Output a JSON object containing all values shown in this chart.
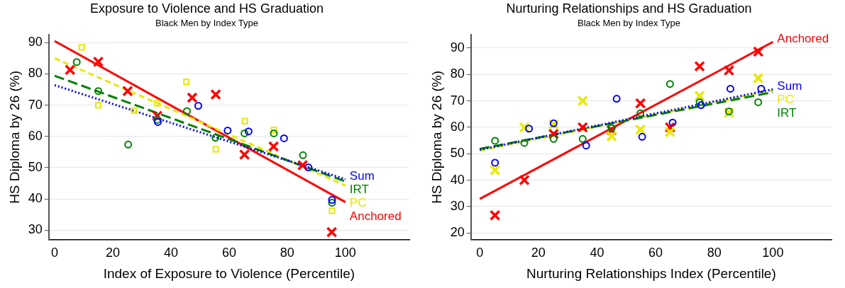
{
  "chart_data": [
    {
      "type": "scatter",
      "title": "Exposure to Violence and HS Graduation",
      "subtitle": "Black Men by Index Type",
      "xlabel": "Index of Exposure to Violence (Percentile)",
      "ylabel": "HS Diploma by 26 (%)",
      "xlim": [
        -2,
        122
      ],
      "ylim": [
        27,
        92.5
      ],
      "xticks": [
        0,
        20,
        40,
        60,
        80,
        100
      ],
      "yticks": [
        30,
        40,
        50,
        60,
        70,
        80,
        90
      ],
      "grid": "y",
      "legend": false,
      "series": [
        {
          "marker": "circle",
          "color": "#0000ff",
          "x": [
            35.5,
            49.4,
            59.5,
            66.7,
            78.9,
            87.3,
            95.4
          ],
          "values": [
            64.6,
            69.8,
            61.9,
            61.6,
            59.4,
            50.1,
            39.7
          ]
        },
        {
          "marker": "circle",
          "color": "#008000",
          "x": [
            7.6,
            15,
            25.3,
            35.3,
            45.5,
            55.3,
            65.3,
            75.4,
            85.4,
            95.4
          ],
          "values": [
            83.8,
            74.5,
            57.4,
            65.3,
            68.1,
            59.6,
            61.0,
            61.0,
            54.0,
            38.8
          ]
        },
        {
          "marker": "square",
          "color": "#e8e800",
          "x": [
            9.3,
            15,
            27.3,
            35.3,
            45.3,
            55.4,
            65.4,
            75.4,
            95.4
          ],
          "values": [
            88.5,
            70.0,
            68.3,
            70.6,
            77.5,
            55.9,
            64.9,
            62.1,
            36.2
          ]
        },
        {
          "marker": "cross",
          "color": "#ff0000",
          "x": [
            5.3,
            15,
            25.1,
            35.3,
            47.3,
            55.4,
            65.3,
            75.3,
            85.3,
            95.3
          ],
          "values": [
            81.3,
            83.9,
            74.5,
            66.6,
            72.4,
            73.4,
            54.2,
            56.8,
            50.8,
            29.4
          ]
        },
        {
          "type": "line",
          "name": "Sum",
          "line_style": "dotted",
          "color": "#0000ff",
          "x": [
            0,
            100
          ],
          "values": [
            76.4,
            46.3
          ]
        },
        {
          "type": "line",
          "name": "IRT",
          "line_style": "dashed",
          "color": "#008000",
          "x": [
            0,
            100
          ],
          "values": [
            79.4,
            45.6
          ]
        },
        {
          "type": "line",
          "name": "PC",
          "line_style": "dashed",
          "color": "#e8e800",
          "x": [
            0,
            100
          ],
          "values": [
            85.0,
            44.3
          ]
        },
        {
          "type": "line",
          "name": "Anchored",
          "line_style": "solid",
          "color": "#ff0000",
          "x": [
            0,
            100
          ],
          "values": [
            90.5,
            39.0
          ]
        }
      ]
    },
    {
      "type": "scatter",
      "title": "Nurturing Relationships and HS Graduation",
      "subtitle": "Black Men by Index Type",
      "xlabel": "Nurturing Relationships Index (Percentile)",
      "ylabel": "HS Diploma by 26 (%)",
      "xlim": [
        -3,
        120
      ],
      "ylim": [
        17.5,
        95
      ],
      "xticks": [
        0,
        20,
        40,
        60,
        80,
        100
      ],
      "yticks": [
        20,
        30,
        40,
        50,
        60,
        70,
        80,
        90
      ],
      "grid": "y",
      "legend": false,
      "series": [
        {
          "marker": "circle",
          "color": "#0000ff",
          "x": [
            5.2,
            16.8,
            25.2,
            36.3,
            46.7,
            55.4,
            65.8,
            75.5,
            85.5,
            96.0
          ],
          "values": [
            46.6,
            59.5,
            61.5,
            53.1,
            70.8,
            56.4,
            61.8,
            68.4,
            74.6,
            74.6
          ]
        },
        {
          "marker": "circle",
          "color": "#008000",
          "x": [
            5.2,
            15.2,
            25.2,
            35.1,
            45.0,
            54.8,
            64.9,
            75.0,
            85.0,
            95.0
          ],
          "values": [
            54.9,
            54.1,
            55.6,
            55.6,
            59.7,
            65.3,
            76.4,
            69.5,
            66.0,
            69.5
          ]
        },
        {
          "marker": "cross",
          "color": "#e8e800",
          "x": [
            5.2,
            15.2,
            25.2,
            35.1,
            45.0,
            54.8,
            64.9,
            75.0,
            85.0,
            95.0
          ],
          "values": [
            43.8,
            60.0,
            61.1,
            70.0,
            56.6,
            59.1,
            58.2,
            71.9,
            65.5,
            78.6
          ]
        },
        {
          "marker": "cross",
          "color": "#ff0000",
          "x": [
            5.2,
            15.2,
            25.2,
            35.1,
            45.0,
            54.8,
            64.9,
            75.0,
            85.0,
            95.0
          ],
          "values": [
            26.7,
            40.0,
            57.5,
            60.0,
            58.9,
            69.1,
            60.0,
            83.1,
            81.5,
            88.6
          ]
        },
        {
          "type": "line",
          "name": "Sum",
          "line_style": "dotted",
          "color": "#0000ff",
          "x": [
            0,
            100
          ],
          "values": [
            51.5,
            74.4
          ]
        },
        {
          "type": "line",
          "name": "IRT",
          "line_style": "dashed",
          "color": "#008000",
          "x": [
            0,
            100
          ],
          "values": [
            51.8,
            73.3
          ]
        },
        {
          "type": "line",
          "name": "PC",
          "line_style": "dashed",
          "color": "#e8e800",
          "x": [
            0,
            100
          ],
          "values": [
            51.1,
            74.0
          ]
        },
        {
          "type": "line",
          "name": "Anchored",
          "line_style": "solid",
          "color": "#ff0000",
          "x": [
            0,
            100
          ],
          "values": [
            32.9,
            92.3
          ]
        }
      ]
    }
  ]
}
